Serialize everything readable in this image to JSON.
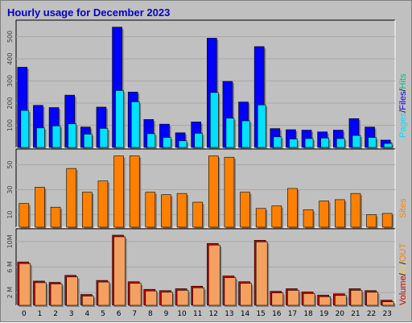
{
  "title": "Hourly usage for December 2023",
  "colors": {
    "pages": "#00e0ff",
    "files": "#0000ff",
    "hits": "#00c080",
    "sites": "#ff8000",
    "volume": "#cc0000",
    "in": "#ffd000",
    "out": "#ff8000",
    "background": "#c0c0c0",
    "plot": "#c0c0c0"
  },
  "chart_data": [
    {
      "type": "bar",
      "name": "pages-files-hits",
      "categories": [
        "0",
        "1",
        "2",
        "3",
        "4",
        "5",
        "6",
        "7",
        "8",
        "9",
        "10",
        "11",
        "12",
        "13",
        "14",
        "15",
        "16",
        "17",
        "18",
        "19",
        "20",
        "21",
        "22",
        "23"
      ],
      "series": [
        {
          "name": "Files",
          "values": [
            362,
            190,
            180,
            236,
            92,
            182,
            543,
            250,
            126,
            105,
            66,
            115,
            493,
            298,
            205,
            455,
            85,
            80,
            78,
            70,
            78,
            130,
            92,
            33
          ]
        },
        {
          "name": "Pages",
          "values": [
            167,
            88,
            97,
            107,
            60,
            86,
            257,
            206,
            62,
            45,
            30,
            64,
            248,
            132,
            120,
            192,
            48,
            38,
            40,
            42,
            40,
            54,
            45,
            18
          ]
        }
      ],
      "ylim": [
        0,
        560
      ],
      "yticks": [
        "100",
        "200",
        "300",
        "400",
        "500"
      ],
      "legend": [
        "Pages",
        "/",
        "Files",
        "/",
        "Hits"
      ]
    },
    {
      "type": "bar",
      "name": "sites",
      "categories": [
        "0",
        "1",
        "2",
        "3",
        "4",
        "5",
        "6",
        "7",
        "8",
        "9",
        "10",
        "11",
        "12",
        "13",
        "14",
        "15",
        "16",
        "17",
        "18",
        "19",
        "20",
        "21",
        "22",
        "23"
      ],
      "series": [
        {
          "name": "Sites",
          "values": [
            19,
            32,
            16,
            47,
            28,
            37,
            57,
            57,
            28,
            26,
            27,
            20,
            57,
            56,
            28,
            15,
            17,
            31,
            14,
            21,
            22,
            27,
            10,
            11
          ]
        }
      ],
      "ylim": [
        0,
        60
      ],
      "yticks": [
        "10",
        "30",
        "50"
      ],
      "legend": [
        "Sites"
      ]
    },
    {
      "type": "bar",
      "name": "volume",
      "categories": [
        "0",
        "1",
        "2",
        "3",
        "4",
        "5",
        "6",
        "7",
        "8",
        "9",
        "10",
        "11",
        "12",
        "13",
        "14",
        "15",
        "16",
        "17",
        "18",
        "19",
        "20",
        "21",
        "22",
        "23"
      ],
      "series": [
        {
          "name": "Volume",
          "values": [
            6.8,
            3.8,
            3.6,
            4.7,
            1.7,
            3.9,
            11.0,
            3.7,
            2.5,
            2.3,
            2.6,
            3.0,
            9.7,
            4.6,
            3.7,
            10.2,
            2.2,
            2.6,
            2.1,
            1.6,
            1.8,
            2.6,
            2.3,
            0.8
          ]
        }
      ],
      "ylim": [
        0,
        11.5
      ],
      "yticks": [
        "2 M",
        "6 M",
        "10M"
      ],
      "legend": [
        "Volume",
        "/",
        "IN",
        "/",
        "OUT",
        "Sites"
      ]
    }
  ]
}
